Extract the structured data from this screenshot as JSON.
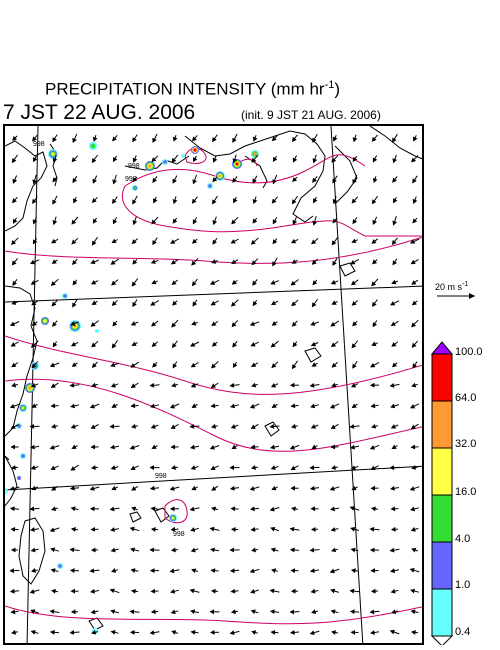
{
  "header": {
    "title_main": "PRECIPITATION INTENSITY (mm hr",
    "title_exp": "-1",
    "title_close": ")",
    "valid_time": "7 JST 22 AUG. 2006",
    "init_time": "(init. 9 JST 21 AUG. 2006)"
  },
  "wind_scale": {
    "label": "20 m s",
    "label_exp": "-1"
  },
  "colorbar": {
    "levels": [
      "100.0",
      "64.0",
      "32.0",
      "16.0",
      "4.0",
      "1.0",
      "0.4"
    ],
    "colors": [
      "#a000ff",
      "#ff0000",
      "#ff9933",
      "#ffff44",
      "#33dd33",
      "#6666ff",
      "#66ffff",
      "#ffffff"
    ]
  },
  "map": {
    "pressure_labels": [
      "998",
      "998",
      "998",
      "998",
      "998"
    ],
    "coastline_color": "#000000",
    "isobar_color": "#cc0066",
    "grid_color": "#000000"
  }
}
